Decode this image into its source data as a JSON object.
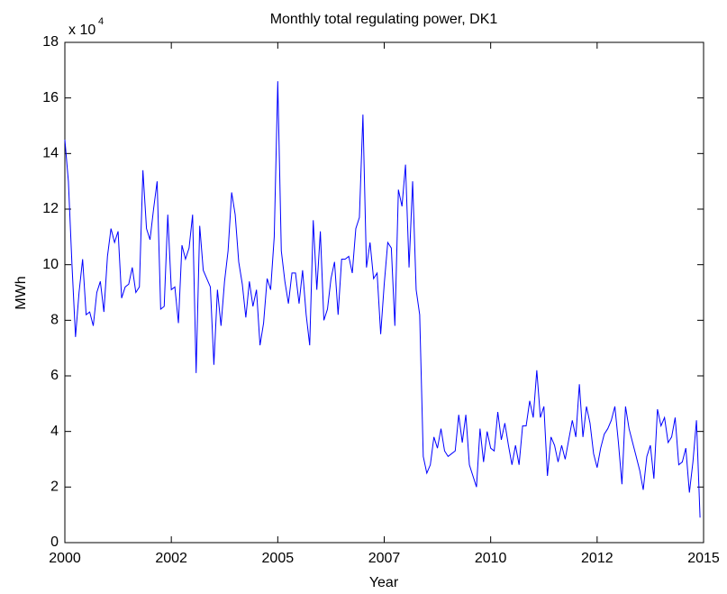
{
  "chart_data": {
    "type": "line",
    "title": "Monthly total regulating power, DK1",
    "x_label": "Year",
    "y_label": "MWh",
    "y_multiplier": "x 10",
    "y_multiplier_exp": "4",
    "xlim": [
      2000,
      2015
    ],
    "xticks": [
      2000,
      {
        "value": 2002.5,
        "label": "2002"
      },
      2005,
      {
        "value": 2007.5,
        "label": "2007"
      },
      2010,
      {
        "value": 2012.5,
        "label": "2012"
      },
      2015
    ],
    "ylim": [
      0,
      18
    ],
    "yticks": [
      0,
      2,
      4,
      6,
      8,
      10,
      12,
      14,
      16,
      18
    ],
    "grid": false,
    "x": [
      2000,
      2000.083,
      2000.167,
      2000.25,
      2000.333,
      2000.417,
      2000.5,
      2000.583,
      2000.667,
      2000.75,
      2000.833,
      2000.917,
      2001,
      2001.083,
      2001.167,
      2001.25,
      2001.333,
      2001.417,
      2001.5,
      2001.583,
      2001.667,
      2001.75,
      2001.833,
      2001.917,
      2002,
      2002.083,
      2002.167,
      2002.25,
      2002.333,
      2002.417,
      2002.5,
      2002.583,
      2002.667,
      2002.75,
      2002.833,
      2002.917,
      2003,
      2003.083,
      2003.167,
      2003.25,
      2003.333,
      2003.417,
      2003.5,
      2003.583,
      2003.667,
      2003.75,
      2003.833,
      2003.917,
      2004,
      2004.083,
      2004.167,
      2004.25,
      2004.333,
      2004.417,
      2004.5,
      2004.583,
      2004.667,
      2004.75,
      2004.833,
      2004.917,
      2005,
      2005.083,
      2005.167,
      2005.25,
      2005.333,
      2005.417,
      2005.5,
      2005.583,
      2005.667,
      2005.75,
      2005.833,
      2005.917,
      2006,
      2006.083,
      2006.167,
      2006.25,
      2006.333,
      2006.417,
      2006.5,
      2006.583,
      2006.667,
      2006.75,
      2006.833,
      2006.917,
      2007,
      2007.083,
      2007.167,
      2007.25,
      2007.333,
      2007.417,
      2007.5,
      2007.583,
      2007.667,
      2007.75,
      2007.833,
      2007.917,
      2008,
      2008.083,
      2008.167,
      2008.25,
      2008.333,
      2008.417,
      2008.5,
      2008.583,
      2008.667,
      2008.75,
      2008.833,
      2008.917,
      2009,
      2009.083,
      2009.167,
      2009.25,
      2009.333,
      2009.417,
      2009.5,
      2009.583,
      2009.667,
      2009.75,
      2009.833,
      2009.917,
      2010,
      2010.083,
      2010.167,
      2010.25,
      2010.333,
      2010.417,
      2010.5,
      2010.583,
      2010.667,
      2010.75,
      2010.833,
      2010.917,
      2011,
      2011.083,
      2011.167,
      2011.25,
      2011.333,
      2011.417,
      2011.5,
      2011.583,
      2011.667,
      2011.75,
      2011.833,
      2011.917,
      2012,
      2012.083,
      2012.167,
      2012.25,
      2012.333,
      2012.417,
      2012.5,
      2012.583,
      2012.667,
      2012.75,
      2012.833,
      2012.917,
      2013,
      2013.083,
      2013.167,
      2013.25,
      2013.333,
      2013.417,
      2013.5,
      2013.583,
      2013.667,
      2013.75,
      2013.833,
      2013.917,
      2014,
      2014.083,
      2014.167,
      2014.25,
      2014.333,
      2014.417,
      2014.5,
      2014.583,
      2014.667,
      2014.75,
      2014.833,
      2014.917
    ],
    "series": [
      {
        "color": "#0000ff",
        "values": [
          14.5,
          13,
          10,
          7.4,
          9,
          10.2,
          8.2,
          8.3,
          7.8,
          9,
          9.4,
          8.3,
          10.3,
          11.3,
          10.8,
          11.2,
          8.8,
          9.2,
          9.3,
          9.9,
          9,
          9.2,
          13.4,
          11.3,
          10.9,
          12,
          13,
          8.4,
          8.5,
          11.8,
          9.1,
          9.2,
          7.9,
          10.7,
          10.2,
          10.6,
          11.8,
          6.1,
          11.4,
          9.8,
          9.5,
          9.2,
          6.4,
          9.1,
          7.8,
          9.4,
          10.5,
          12.6,
          11.8,
          10.1,
          9.3,
          8.1,
          9.4,
          8.5,
          9.1,
          7.1,
          7.9,
          9.5,
          9.1,
          11,
          16.6,
          10.5,
          9.4,
          8.6,
          9.7,
          9.7,
          8.6,
          9.8,
          8.2,
          7.1,
          11.6,
          9.1,
          11.2,
          8,
          8.4,
          9.5,
          10.1,
          8.2,
          10.2,
          10.2,
          10.3,
          9.7,
          11.3,
          11.7,
          15.4,
          9.9,
          10.8,
          9.5,
          9.7,
          7.5,
          9.3,
          10.8,
          10.6,
          7.8,
          12.7,
          12.1,
          13.6,
          9.9,
          13,
          9.1,
          8.2,
          3.1,
          2.5,
          2.8,
          3.8,
          3.4,
          4.1,
          3.3,
          3.1,
          3.2,
          3.3,
          4.6,
          3.6,
          4.6,
          2.8,
          2.4,
          2,
          4.1,
          2.9,
          4,
          3.4,
          3.3,
          4.7,
          3.7,
          4.3,
          3.5,
          2.8,
          3.5,
          2.8,
          4.2,
          4.2,
          5.1,
          4.5,
          6.2,
          4.5,
          4.9,
          2.4,
          3.8,
          3.5,
          2.9,
          3.5,
          3,
          3.7,
          4.4,
          3.8,
          5.7,
          3.8,
          4.9,
          4.3,
          3.2,
          2.7,
          3.4,
          3.9,
          4.1,
          4.4,
          4.9,
          3.6,
          2.1,
          4.9,
          4.1,
          3.6,
          3.1,
          2.6,
          1.9,
          3.1,
          3.5,
          2.3,
          4.8,
          4.2,
          4.5,
          3.6,
          3.8,
          4.5,
          2.8,
          2.9,
          3.4,
          1.8,
          2.9,
          4.4,
          0.9
        ]
      }
    ]
  }
}
